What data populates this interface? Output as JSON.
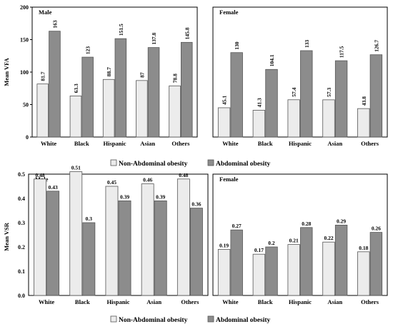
{
  "colors": {
    "non_abdominal": "#ececec",
    "abdominal": "#8c8c8c",
    "stroke": "#555555"
  },
  "legend": {
    "non_abdominal": "Non-Abdominal obesity",
    "abdominal": "Abdominal obesity"
  },
  "chart_data": [
    {
      "type": "bar",
      "ylabel": "Mean VFA",
      "ylim": [
        0,
        200
      ],
      "yticks": [
        "0",
        "50",
        "100",
        "150",
        "200"
      ],
      "panels": [
        {
          "title": "Male",
          "categories": [
            "White",
            "Black",
            "Hispanic",
            "Asian",
            "Others"
          ],
          "series": [
            {
              "name": "Non-Abdominal obesity",
              "values": [
                81.7,
                63.3,
                88.7,
                87,
                78.8
              ],
              "labels": [
                "81.7",
                "63.3",
                "88.7",
                "87",
                "78.8"
              ]
            },
            {
              "name": "Abdominal obesity",
              "values": [
                163,
                123,
                151.5,
                137.8,
                145.8
              ],
              "labels": [
                "163",
                "123",
                "151.5",
                "137.8",
                "145.8"
              ]
            }
          ]
        },
        {
          "title": "Female",
          "categories": [
            "White",
            "Black",
            "Hispanic",
            "Asian",
            "Others"
          ],
          "series": [
            {
              "name": "Non-Abdominal obesity",
              "values": [
                45.1,
                41.3,
                57.4,
                57.3,
                43.8
              ],
              "labels": [
                "45.1",
                "41.3",
                "57.4",
                "57.3",
                "43.8"
              ]
            },
            {
              "name": "Abdominal obesity",
              "values": [
                130,
                104.1,
                133,
                117.5,
                126.7
              ],
              "labels": [
                "130",
                "104.1",
                "133",
                "117.5",
                "126.7"
              ]
            }
          ]
        }
      ]
    },
    {
      "type": "bar",
      "ylabel": "Mean VSR",
      "ylim": [
        0,
        0.5
      ],
      "yticks": [
        "0.0",
        "0.1",
        "0.2",
        "0.3",
        "0.4",
        "0.5"
      ],
      "panels": [
        {
          "title": "Male",
          "categories": [
            "White",
            "Black",
            "Hispanic",
            "Asian",
            "Others"
          ],
          "series": [
            {
              "name": "Non-Abdominal obesity",
              "values": [
                0.48,
                0.51,
                0.45,
                0.46,
                0.48
              ],
              "labels": [
                "0.48",
                "0.51",
                "0.45",
                "0.46",
                "0.48"
              ]
            },
            {
              "name": "Abdominal obesity",
              "values": [
                0.43,
                0.3,
                0.39,
                0.39,
                0.36
              ],
              "labels": [
                "0.43",
                "0.3",
                "0.39",
                "0.39",
                "0.36"
              ]
            }
          ]
        },
        {
          "title": "Female",
          "categories": [
            "White",
            "Black",
            "Hispanic",
            "Asian",
            "Others"
          ],
          "series": [
            {
              "name": "Non-Abdominal obesity",
              "values": [
                0.19,
                0.17,
                0.21,
                0.22,
                0.18
              ],
              "labels": [
                "0.19",
                "0.17",
                "0.21",
                "0.22",
                "0.18"
              ]
            },
            {
              "name": "Abdominal obesity",
              "values": [
                0.27,
                0.2,
                0.28,
                0.29,
                0.26
              ],
              "labels": [
                "0.27",
                "0.2",
                "0.28",
                "0.29",
                "0.26"
              ]
            }
          ]
        }
      ]
    }
  ]
}
